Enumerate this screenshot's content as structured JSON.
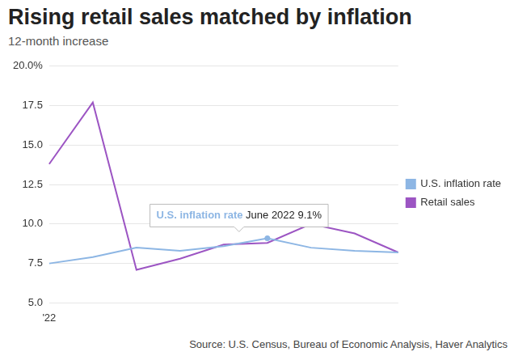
{
  "chart_data": {
    "type": "line",
    "title": "Rising retail sales matched by inflation",
    "subtitle": "12-month increase",
    "source": "Source: U.S. Census, Bureau of Economic Analysis, Haver Analytics",
    "categories": [
      "'22",
      null,
      null,
      null,
      null,
      null,
      null,
      null,
      null
    ],
    "series": [
      {
        "name": "U.S. inflation rate",
        "color": "#8db6e4",
        "values": [
          7.5,
          7.9,
          8.5,
          8.3,
          8.6,
          9.1,
          8.5,
          8.3,
          8.2
        ]
      },
      {
        "name": "Retail sales",
        "color": "#9c55c3",
        "values": [
          13.8,
          17.7,
          7.1,
          7.8,
          8.7,
          8.8,
          10.0,
          9.4,
          8.2
        ]
      }
    ],
    "ylim": [
      5,
      20
    ],
    "yticks": [
      {
        "value": 5,
        "label": "5.0"
      },
      7.5,
      {
        "value": 10,
        "label": "10.0"
      },
      12.5,
      {
        "value": 15,
        "label": "15.0"
      },
      17.5,
      {
        "value": 20,
        "label": "20.0%"
      }
    ],
    "grid": true,
    "legend": "right",
    "annotations": [
      {
        "series": "U.S. inflation rate",
        "category": "June 2022",
        "value": 9.1,
        "label": "9.1%"
      }
    ]
  }
}
